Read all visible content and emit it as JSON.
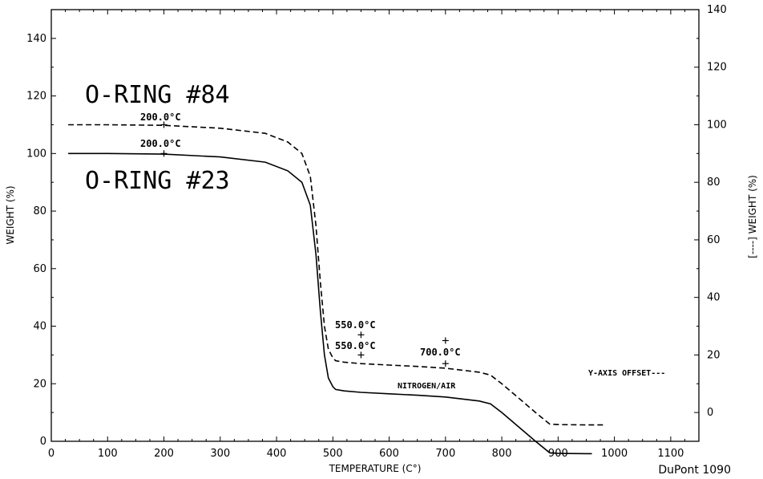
{
  "chart_data": {
    "type": "line",
    "xlabel": "TEMPERATURE (C°)",
    "ylabel_left": "WEIGHT (%)",
    "ylabel_right": "[----] WEIGHT (%)",
    "xlim": [
      0,
      1150
    ],
    "ylim_left": [
      0,
      150
    ],
    "ylim_right": [
      -10,
      140
    ],
    "x_ticks": [
      0,
      100,
      200,
      300,
      400,
      500,
      600,
      700,
      800,
      900,
      1000,
      1100
    ],
    "y_ticks_left": [
      0,
      20,
      40,
      60,
      80,
      100,
      120,
      140
    ],
    "y_ticks_right": [
      0,
      20,
      40,
      60,
      80,
      100,
      120,
      140
    ],
    "grid": false,
    "series": [
      {
        "name": "O-RING #84",
        "axis": "right",
        "style": "dashed",
        "x": [
          30,
          100,
          200,
          300,
          380,
          420,
          445,
          460,
          470,
          478,
          485,
          492,
          500,
          505,
          520,
          550,
          600,
          650,
          700,
          760,
          780,
          800,
          830,
          860,
          885,
          900,
          950,
          985
        ],
        "y": [
          100,
          100,
          99.8,
          98.8,
          97,
          94,
          90,
          82,
          65,
          45,
          30,
          22,
          19,
          18,
          17.5,
          17,
          16.5,
          16,
          15.4,
          14,
          13,
          10,
          5,
          0,
          -4,
          -4.2,
          -4.3,
          -4.3
        ]
      },
      {
        "name": "O-RING #23",
        "axis": "left",
        "style": "solid",
        "x": [
          30,
          100,
          200,
          300,
          380,
          420,
          445,
          460,
          470,
          478,
          485,
          492,
          500,
          505,
          520,
          550,
          600,
          650,
          700,
          760,
          780,
          800,
          830,
          860,
          885,
          900,
          950,
          960
        ],
        "y": [
          100,
          100,
          99.8,
          98.8,
          97,
          94,
          90,
          82,
          65,
          45,
          30,
          22,
          19,
          18,
          17.5,
          17,
          16.5,
          16,
          15.4,
          14,
          13,
          10,
          5,
          0,
          -4,
          -4.2,
          -4.3,
          -4.3
        ]
      }
    ],
    "annotations": {
      "label_84": "O-RING #84",
      "label_23": "O-RING #23",
      "dashed_200": "200.0°C",
      "solid_200": "200.0°C",
      "dashed_550": "550.0°C",
      "solid_550": "550.0°C",
      "solid_700": "700.0°C",
      "atmosphere": "NITROGEN/AIR",
      "offset_note": "Y-AXIS OFFSET---",
      "instrument": "DuPont  1090"
    }
  }
}
